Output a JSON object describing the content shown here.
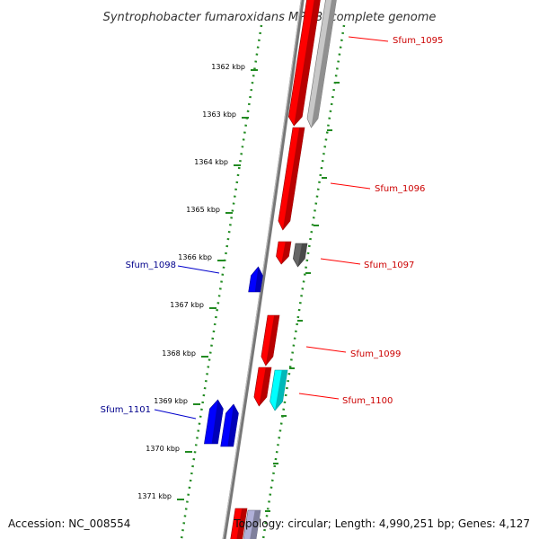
{
  "title": "Syntrophobacter fumaroxidans MPOB, complete genome",
  "accession_line": "Accession: NC_008554",
  "topology_line": "Topology: circular; Length: 4,990,251 bp; Genes: 4,127",
  "colors": {
    "forward": "#ff0000",
    "reverse": "#0000ff",
    "backbone": "#888888",
    "ticks": "#228b22",
    "pseudo": "#c8c8c8",
    "other": "#666666",
    "rna": "#00ffff"
  },
  "chart_data": {
    "type": "genome-map-zoom",
    "kbp_ticks": [
      "1362 kbp",
      "1363 kbp",
      "1364 kbp",
      "1365 kbp",
      "1366 kbp",
      "1367 kbp",
      "1368 kbp",
      "1369 kbp",
      "1370 kbp",
      "1371 kbp"
    ],
    "gene_labels": [
      {
        "name": "Sfum_1095",
        "strand": "forward"
      },
      {
        "name": "Sfum_1096",
        "strand": "forward"
      },
      {
        "name": "Sfum_1097",
        "strand": "forward"
      },
      {
        "name": "Sfum_1098",
        "strand": "reverse"
      },
      {
        "name": "Sfum_1099",
        "strand": "forward"
      },
      {
        "name": "Sfum_1100",
        "strand": "forward"
      },
      {
        "name": "Sfum_1101",
        "strand": "reverse"
      }
    ]
  }
}
